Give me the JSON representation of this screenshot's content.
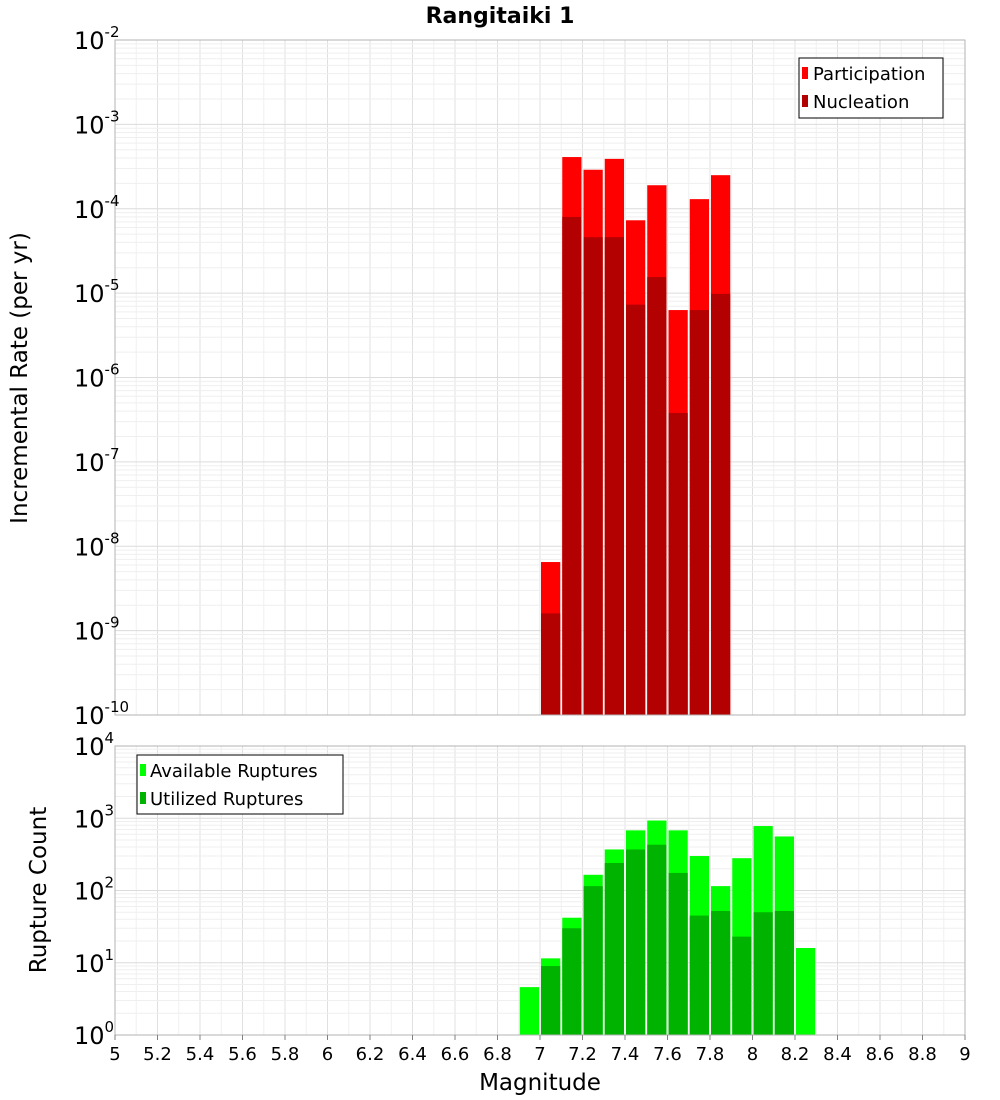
{
  "title": "Rangitaiki 1",
  "chart_data": [
    {
      "type": "bar",
      "scale": "log",
      "ylabel": "Incremental Rate (per yr)",
      "xlabel": "",
      "xlim": [
        5,
        9
      ],
      "ylim_exponents": [
        -10,
        -2
      ],
      "y_tick_base": "10",
      "y_tick_exponents": [
        "-10",
        "-9",
        "-8",
        "-7",
        "-6",
        "-5",
        "-4",
        "-3",
        "-2"
      ],
      "grid": true,
      "bin_width": 0.1,
      "x": [
        7.0,
        7.1,
        7.2,
        7.3,
        7.4,
        7.5,
        7.6,
        7.7,
        7.8
      ],
      "series": [
        {
          "name": "Participation",
          "color": "#ff0000",
          "values": [
            6.5e-09,
            0.00041,
            0.00029,
            0.00039,
            7.3e-05,
            0.00019,
            6.3e-06,
            0.00013,
            0.00025
          ]
        },
        {
          "name": "Nucleation",
          "color": "#b30000",
          "values": [
            1.6e-09,
            8e-05,
            4.6e-05,
            4.6e-05,
            7.3e-06,
            1.55e-05,
            3.8e-07,
            6.3e-06,
            9.8e-06
          ]
        }
      ],
      "legend_position": "top-right"
    },
    {
      "type": "bar",
      "scale": "log",
      "ylabel": "Rupture Count",
      "xlabel": "Magnitude",
      "xlim": [
        5,
        9
      ],
      "ylim_exponents": [
        0,
        4
      ],
      "y_tick_base": "10",
      "y_tick_exponents": [
        "0",
        "1",
        "2",
        "3",
        "4"
      ],
      "x_ticks": [
        "5",
        "5.2",
        "5.4",
        "5.6",
        "5.8",
        "6",
        "6.2",
        "6.4",
        "6.6",
        "6.8",
        "7",
        "7.2",
        "7.4",
        "7.6",
        "7.8",
        "8",
        "8.2",
        "8.4",
        "8.6",
        "8.8",
        "9"
      ],
      "grid": true,
      "bin_width": 0.1,
      "x": [
        6.4,
        6.7,
        6.8,
        6.9,
        7.0,
        7.1,
        7.2,
        7.3,
        7.4,
        7.5,
        7.6,
        7.7,
        7.8,
        7.9,
        8.0,
        8.1,
        8.2
      ],
      "series": [
        {
          "name": "Available Ruptures",
          "color": "#00ff00",
          "values": [
            1,
            1,
            1,
            4.6,
            11.5,
            42,
            165,
            370,
            680,
            930,
            680,
            300,
            115,
            280,
            780,
            560,
            16
          ]
        },
        {
          "name": "Utilized Ruptures",
          "color": "#00b300",
          "values": [
            null,
            null,
            null,
            null,
            9,
            30,
            115,
            240,
            370,
            430,
            175,
            45,
            52,
            23,
            50,
            52,
            1
          ]
        }
      ],
      "legend_position": "top-left"
    }
  ]
}
